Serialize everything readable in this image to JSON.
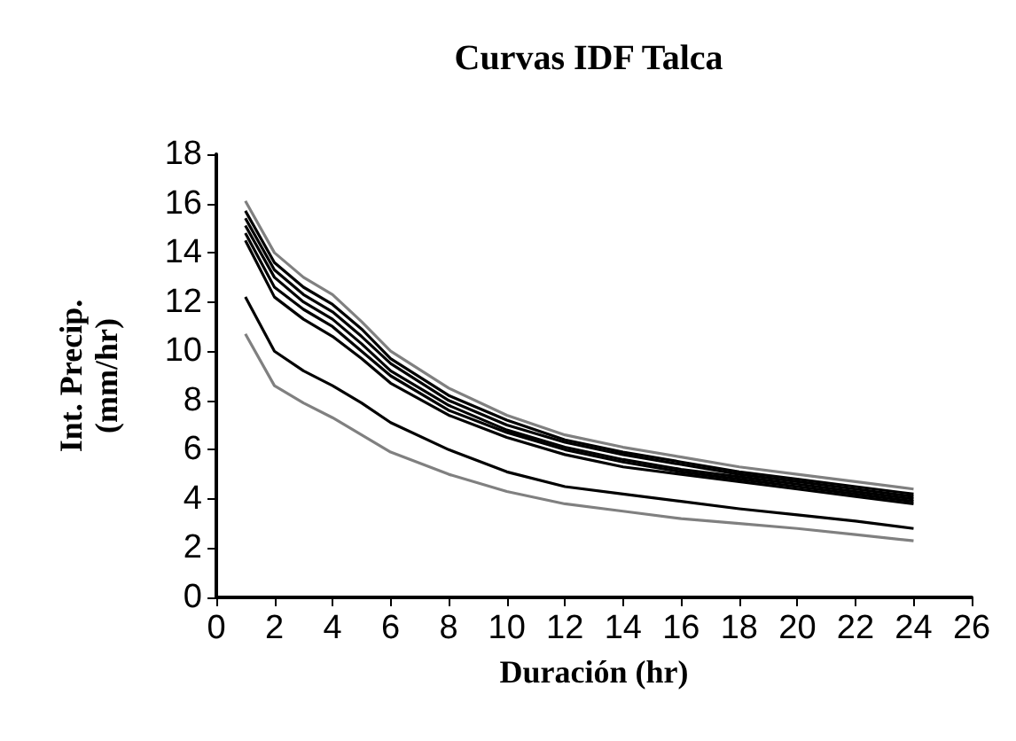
{
  "chart_data": {
    "type": "line",
    "title": "Curvas IDF Talca",
    "xlabel": "Duración (hr)",
    "ylabel": "Int. Precip.\n(mm/hr)",
    "x": [
      1,
      2,
      3,
      4,
      5,
      6,
      8,
      10,
      12,
      14,
      16,
      18,
      20,
      22,
      24
    ],
    "xlim": [
      0,
      26
    ],
    "xticks": [
      0,
      2,
      4,
      6,
      8,
      10,
      12,
      14,
      16,
      18,
      20,
      22,
      24,
      26
    ],
    "ylim": [
      0,
      18
    ],
    "yticks": [
      0,
      2,
      4,
      6,
      8,
      10,
      12,
      14,
      16,
      18
    ],
    "grid": false,
    "marker": "none",
    "line_style": "solid",
    "series": [
      {
        "color": "#808080",
        "values": [
          10.7,
          8.6,
          7.9,
          7.3,
          6.6,
          5.9,
          5.0,
          4.3,
          3.8,
          3.5,
          3.2,
          3.0,
          2.8,
          2.55,
          2.3
        ]
      },
      {
        "color": "#000000",
        "values": [
          12.2,
          10.0,
          9.2,
          8.6,
          7.9,
          7.1,
          6.0,
          5.1,
          4.5,
          4.2,
          3.9,
          3.6,
          3.35,
          3.1,
          2.8
        ]
      },
      {
        "color": "#000000",
        "values": [
          14.5,
          12.2,
          11.3,
          10.6,
          9.7,
          8.7,
          7.4,
          6.5,
          5.8,
          5.3,
          5.0,
          4.7,
          4.4,
          4.1,
          3.8
        ]
      },
      {
        "color": "#000000",
        "values": [
          14.8,
          12.6,
          11.7,
          11.0,
          10.0,
          9.0,
          7.6,
          6.7,
          6.0,
          5.5,
          5.1,
          4.8,
          4.5,
          4.2,
          3.9
        ]
      },
      {
        "color": "#000000",
        "values": [
          15.1,
          13.0,
          12.0,
          11.3,
          10.3,
          9.2,
          7.8,
          6.8,
          6.1,
          5.6,
          5.2,
          4.9,
          4.6,
          4.3,
          4.0
        ]
      },
      {
        "color": "#000000",
        "values": [
          15.4,
          13.3,
          12.3,
          11.6,
          10.6,
          9.5,
          8.0,
          7.0,
          6.3,
          5.8,
          5.4,
          5.0,
          4.7,
          4.4,
          4.1
        ]
      },
      {
        "color": "#000000",
        "values": [
          15.7,
          13.6,
          12.6,
          11.9,
          10.9,
          9.7,
          8.2,
          7.2,
          6.4,
          5.9,
          5.5,
          5.1,
          4.8,
          4.5,
          4.2
        ]
      },
      {
        "color": "#808080",
        "values": [
          16.1,
          14.0,
          13.0,
          12.3,
          11.2,
          10.0,
          8.5,
          7.4,
          6.6,
          6.1,
          5.7,
          5.3,
          5.0,
          4.7,
          4.4
        ]
      }
    ]
  }
}
